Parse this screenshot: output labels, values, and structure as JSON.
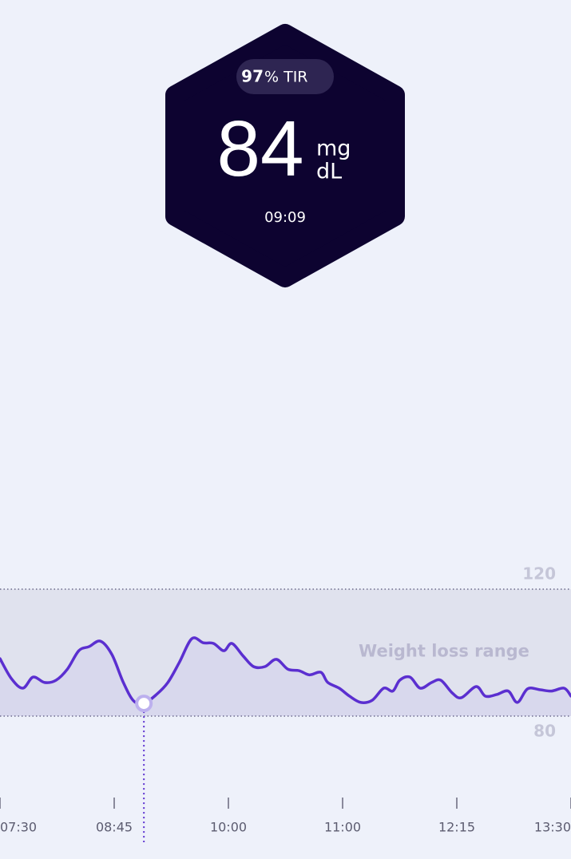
{
  "header": {
    "tir_value": "97",
    "tir_label": "% TIR",
    "glucose": "84",
    "unit_top": "mg",
    "unit_bottom": "dL",
    "time": "09:09"
  },
  "chart_data": {
    "type": "line",
    "x": [
      0,
      0.1,
      0.2,
      0.29,
      0.39,
      0.49,
      0.59,
      0.69,
      0.78,
      0.88,
      0.98,
      1.08,
      1.17,
      1.26,
      1.37,
      1.47,
      1.57,
      1.68,
      1.78,
      1.87,
      1.96,
      2.03,
      2.13,
      2.22,
      2.32,
      2.42,
      2.52,
      2.62,
      2.71,
      2.81,
      2.87,
      2.97,
      3.06,
      3.16,
      3.26,
      3.36,
      3.44,
      3.5,
      3.59,
      3.68,
      3.78,
      3.86,
      3.96,
      4.04,
      4.17,
      4.25,
      4.35,
      4.45,
      4.53,
      4.62,
      4.73,
      4.83,
      4.94,
      5.0
    ],
    "values": [
      98.1,
      91.8,
      88.8,
      92.3,
      90.6,
      91.3,
      94.8,
      100.6,
      101.9,
      103.6,
      99.4,
      90.6,
      84.8,
      84.0,
      86.8,
      90.6,
      96.9,
      104.4,
      103.1,
      102.9,
      100.6,
      102.9,
      98.9,
      95.6,
      95.6,
      97.9,
      94.8,
      94.3,
      93.0,
      93.8,
      90.6,
      88.8,
      86.3,
      84.3,
      85.0,
      88.8,
      87.9,
      91.3,
      92.3,
      88.8,
      90.6,
      91.3,
      87.3,
      85.8,
      89.3,
      86.3,
      86.8,
      87.9,
      84.3,
      88.6,
      88.3,
      87.9,
      88.8,
      86.3
    ],
    "color": "#5b2fd0",
    "selected_index": 13,
    "range": {
      "label": "Weight loss range",
      "low": 80,
      "high": 120
    },
    "xlim": [
      0,
      5
    ],
    "xticks": [
      {
        "value": 0,
        "label": "07:30"
      },
      {
        "value": 1,
        "label": "08:45"
      },
      {
        "value": 2,
        "label": "10:00"
      },
      {
        "value": 3,
        "label": "11:00"
      },
      {
        "value": 4,
        "label": "12:15"
      },
      {
        "value": 5,
        "label": "13:30"
      }
    ],
    "ylim": [
      80,
      120
    ],
    "yticks": [
      80,
      120
    ]
  }
}
